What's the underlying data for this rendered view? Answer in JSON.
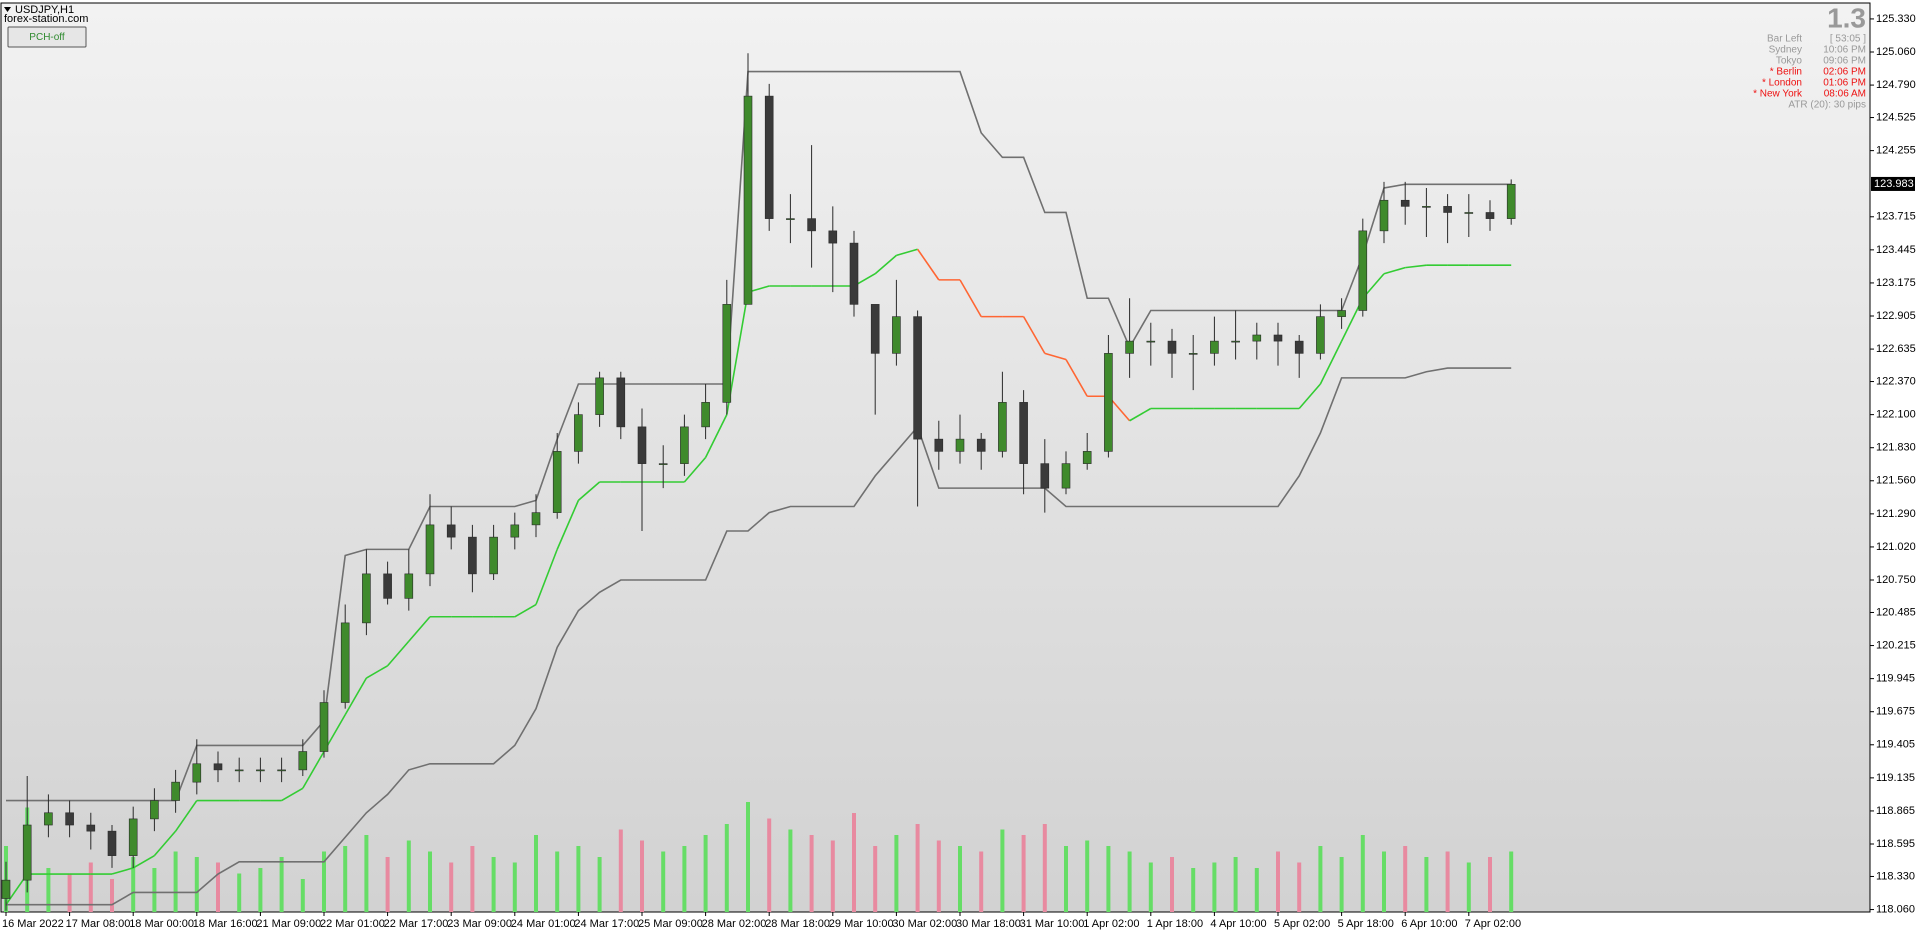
{
  "chart_data": {
    "type": "candlestick",
    "title": "USDJPY,H1",
    "subtitle": "forex-station.com",
    "button": "PCH-off",
    "categories": [
      "16 Mar 2022",
      null,
      null,
      "17 Mar 08:00",
      null,
      null,
      "18 Mar 00:00",
      null,
      null,
      "18 Mar 16:00",
      null,
      null,
      "21 Mar 09:00",
      null,
      null,
      "22 Mar 01:00",
      null,
      null,
      "22 Mar 17:00",
      null,
      null,
      "23 Mar 09:00",
      null,
      null,
      "24 Mar 01:00",
      null,
      null,
      "24 Mar 17:00",
      null,
      null,
      "25 Mar 09:00",
      null,
      null,
      "28 Mar 02:00",
      null,
      null,
      "28 Mar 18:00",
      null,
      null,
      "29 Mar 10:00",
      null,
      null,
      "30 Mar 02:00",
      null,
      null,
      "30 Mar 18:00",
      null,
      null,
      "31 Mar 10:00",
      null,
      null,
      "1 Apr 02:00",
      null,
      null,
      "1 Apr 18:00",
      null,
      null,
      "4 Apr 10:00",
      null,
      null,
      "5 Apr 02:00",
      null,
      null,
      "5 Apr 18:00",
      null,
      null,
      "6 Apr 10:00",
      null,
      null,
      "7 Apr 02:00",
      null,
      null
    ],
    "open": [
      118.15,
      118.3,
      118.75,
      118.85,
      118.75,
      118.7,
      118.5,
      118.8,
      118.95,
      119.1,
      119.25,
      119.2,
      119.2,
      119.2,
      119.2,
      119.35,
      119.75,
      120.4,
      120.8,
      120.6,
      120.8,
      121.2,
      121.1,
      120.8,
      121.1,
      121.2,
      121.3,
      121.8,
      122.1,
      122.4,
      122.0,
      121.7,
      121.7,
      122.0,
      122.2,
      123.0,
      124.7,
      123.7,
      123.7,
      123.6,
      123.5,
      123.0,
      122.6,
      122.9,
      121.9,
      121.8,
      121.9,
      121.8,
      122.2,
      121.7,
      121.5,
      121.7,
      121.8,
      122.6,
      122.7,
      122.7,
      122.6,
      122.6,
      122.7,
      122.7,
      122.75,
      122.7,
      122.6,
      122.9,
      122.95,
      123.6,
      123.85,
      123.8,
      123.8,
      123.75,
      123.75,
      123.7
    ],
    "high": [
      118.45,
      119.15,
      119.0,
      118.95,
      118.85,
      118.75,
      118.9,
      119.05,
      119.2,
      119.45,
      119.35,
      119.3,
      119.3,
      119.3,
      119.45,
      119.85,
      120.55,
      121.0,
      120.9,
      121.0,
      121.45,
      121.35,
      121.2,
      121.2,
      121.3,
      121.45,
      121.95,
      122.2,
      122.45,
      122.45,
      122.15,
      121.85,
      122.1,
      122.35,
      123.2,
      125.05,
      124.8,
      123.9,
      124.3,
      123.8,
      123.6,
      122.95,
      123.2,
      122.95,
      122.05,
      122.1,
      121.95,
      122.45,
      122.3,
      121.9,
      121.8,
      121.95,
      122.75,
      123.05,
      122.85,
      122.8,
      122.75,
      122.9,
      122.95,
      122.85,
      122.85,
      122.75,
      123.0,
      123.05,
      123.7,
      124.0,
      124.0,
      123.95,
      123.9,
      123.9,
      123.85,
      124.02
    ],
    "low": [
      118.05,
      118.2,
      118.65,
      118.65,
      118.55,
      118.4,
      118.4,
      118.7,
      118.85,
      119.0,
      119.1,
      119.1,
      119.1,
      119.1,
      119.15,
      119.3,
      119.7,
      120.3,
      120.55,
      120.5,
      120.7,
      121.0,
      120.65,
      120.75,
      121.0,
      121.1,
      121.25,
      121.7,
      122.0,
      121.9,
      121.15,
      121.5,
      121.6,
      121.9,
      122.1,
      123.0,
      123.6,
      123.5,
      123.3,
      123.1,
      122.9,
      122.1,
      122.5,
      121.35,
      121.65,
      121.7,
      121.65,
      121.75,
      121.45,
      121.3,
      121.45,
      121.65,
      121.75,
      122.4,
      122.5,
      122.4,
      122.3,
      122.5,
      122.55,
      122.55,
      122.5,
      122.4,
      122.55,
      122.8,
      122.9,
      123.5,
      123.65,
      123.55,
      123.5,
      123.55,
      123.6,
      123.65
    ],
    "close": [
      118.3,
      118.75,
      118.85,
      118.75,
      118.7,
      118.5,
      118.8,
      118.95,
      119.1,
      119.25,
      119.2,
      119.2,
      119.2,
      119.2,
      119.35,
      119.75,
      120.4,
      120.8,
      120.6,
      120.8,
      121.2,
      121.1,
      120.8,
      121.1,
      121.2,
      121.3,
      121.8,
      122.1,
      122.4,
      122.0,
      121.7,
      121.7,
      122.0,
      122.2,
      123.0,
      124.7,
      123.7,
      123.7,
      123.6,
      123.5,
      123.0,
      122.6,
      122.9,
      121.9,
      121.8,
      121.9,
      121.8,
      122.2,
      121.7,
      121.5,
      121.7,
      121.8,
      122.6,
      122.7,
      122.7,
      122.6,
      122.6,
      122.7,
      122.7,
      122.75,
      122.7,
      122.6,
      122.9,
      122.95,
      123.6,
      123.85,
      123.8,
      123.8,
      123.75,
      123.75,
      123.7,
      123.98
    ],
    "up_color": "#3f8a2c",
    "down_color": "#3a3a3a",
    "volume": [
      60,
      95,
      40,
      35,
      45,
      30,
      50,
      40,
      55,
      50,
      45,
      35,
      40,
      50,
      30,
      55,
      60,
      70,
      50,
      65,
      55,
      45,
      60,
      50,
      45,
      70,
      55,
      60,
      50,
      75,
      65,
      55,
      60,
      70,
      80,
      100,
      85,
      75,
      70,
      65,
      90,
      60,
      70,
      80,
      65,
      60,
      55,
      75,
      70,
      80,
      60,
      65,
      60,
      55,
      45,
      50,
      40,
      45,
      50,
      40,
      55,
      45,
      60,
      50,
      70,
      55,
      60,
      50,
      55,
      45,
      50,
      55
    ],
    "volume_up_color": "#66dd66",
    "volume_down_color": "#e88aa0",
    "series": [
      {
        "color": "#707070",
        "values": [
          118.95,
          118.95,
          118.95,
          118.95,
          118.95,
          118.95,
          118.95,
          118.95,
          118.95,
          119.4,
          119.4,
          119.4,
          119.4,
          119.4,
          119.4,
          119.6,
          120.95,
          121.0,
          121.0,
          121.0,
          121.35,
          121.35,
          121.35,
          121.35,
          121.35,
          121.4,
          121.9,
          122.35,
          122.35,
          122.35,
          122.35,
          122.35,
          122.35,
          122.35,
          122.35,
          124.9,
          124.9,
          124.9,
          124.9,
          124.9,
          124.9,
          124.9,
          124.9,
          124.9,
          124.9,
          124.9,
          124.4,
          124.2,
          124.2,
          123.75,
          123.75,
          123.05,
          123.05,
          122.65,
          122.95,
          122.95,
          122.95,
          122.95,
          122.95,
          122.95,
          122.95,
          122.95,
          122.95,
          122.95,
          123.4,
          123.95,
          123.98,
          123.98,
          123.98,
          123.98,
          123.98,
          123.98
        ]
      },
      {
        "color": "#33cc33",
        "down_color": "#ff6633",
        "values": [
          118.1,
          118.35,
          118.35,
          118.35,
          118.35,
          118.35,
          118.4,
          118.5,
          118.7,
          118.95,
          118.95,
          118.95,
          118.95,
          118.95,
          119.05,
          119.35,
          119.65,
          119.95,
          120.05,
          120.25,
          120.45,
          120.45,
          120.45,
          120.45,
          120.45,
          120.55,
          121.0,
          121.4,
          121.55,
          121.55,
          121.55,
          121.55,
          121.55,
          121.75,
          122.1,
          123.1,
          123.15,
          123.15,
          123.15,
          123.15,
          123.15,
          123.25,
          123.4,
          123.45,
          123.2,
          123.2,
          122.9,
          122.9,
          122.9,
          122.6,
          122.55,
          122.25,
          122.25,
          122.05,
          122.15,
          122.15,
          122.15,
          122.15,
          122.15,
          122.15,
          122.15,
          122.15,
          122.35,
          122.7,
          123.05,
          123.25,
          123.3,
          123.32,
          123.32,
          123.32,
          123.32,
          123.32
        ]
      },
      {
        "color": "#707070",
        "values": [
          118.1,
          118.1,
          118.1,
          118.1,
          118.1,
          118.1,
          118.2,
          118.2,
          118.2,
          118.2,
          118.35,
          118.45,
          118.45,
          118.45,
          118.45,
          118.45,
          118.65,
          118.85,
          119.0,
          119.2,
          119.25,
          119.25,
          119.25,
          119.25,
          119.4,
          119.7,
          120.2,
          120.5,
          120.65,
          120.75,
          120.75,
          120.75,
          120.75,
          120.75,
          121.15,
          121.15,
          121.3,
          121.35,
          121.35,
          121.35,
          121.35,
          121.6,
          121.8,
          122.0,
          121.5,
          121.5,
          121.5,
          121.5,
          121.5,
          121.5,
          121.35,
          121.35,
          121.35,
          121.35,
          121.35,
          121.35,
          121.35,
          121.35,
          121.35,
          121.35,
          121.35,
          121.6,
          121.95,
          122.4,
          122.4,
          122.4,
          122.4,
          122.45,
          122.48,
          122.48,
          122.48,
          122.48
        ]
      }
    ],
    "ylim": [
      118.04,
      125.46
    ],
    "yticks": [
      {
        "value": 125.33,
        "label": "125.330"
      },
      {
        "value": 125.06,
        "label": "125.060"
      },
      {
        "value": 124.79,
        "label": "124.790"
      },
      {
        "value": 124.525,
        "label": "124.525"
      },
      {
        "value": 124.255,
        "label": "124.255"
      },
      {
        "value": 123.715,
        "label": "123.715"
      },
      {
        "value": 123.445,
        "label": "123.445"
      },
      {
        "value": 123.175,
        "label": "123.175"
      },
      {
        "value": 122.905,
        "label": "122.905"
      },
      {
        "value": 122.635,
        "label": "122.635"
      },
      {
        "value": 122.37,
        "label": "122.370"
      },
      {
        "value": 122.1,
        "label": "122.100"
      },
      {
        "value": 121.83,
        "label": "121.830"
      },
      {
        "value": 121.56,
        "label": "121.560"
      },
      {
        "value": 121.29,
        "label": "121.290"
      },
      {
        "value": 121.02,
        "label": "121.020"
      },
      {
        "value": 120.75,
        "label": "120.750"
      },
      {
        "value": 120.485,
        "label": "120.485"
      },
      {
        "value": 120.215,
        "label": "120.215"
      },
      {
        "value": 119.945,
        "label": "119.945"
      },
      {
        "value": 119.675,
        "label": "119.675"
      },
      {
        "value": 119.405,
        "label": "119.405"
      },
      {
        "value": 119.135,
        "label": "119.135"
      },
      {
        "value": 118.865,
        "label": "118.865"
      },
      {
        "value": 118.595,
        "label": "118.595"
      },
      {
        "value": 118.33,
        "label": "118.330"
      },
      {
        "value": 118.06,
        "label": "118.060"
      }
    ],
    "price_label": {
      "value": 123.983,
      "label": "123.983"
    },
    "grid": false,
    "info_panel": {
      "big": "1.3",
      "rows": [
        {
          "label": "Bar Left",
          "value": "[ 53:05 ]",
          "highlight": false
        },
        {
          "label": "Sydney",
          "value": "10:06 PM",
          "highlight": false
        },
        {
          "label": "Tokyo",
          "value": "09:06 PM",
          "highlight": false
        },
        {
          "label": "* Berlin",
          "value": "02:06 PM",
          "highlight": true
        },
        {
          "label": "* London",
          "value": "01:06 PM",
          "highlight": true
        },
        {
          "label": "* New York",
          "value": "08:06 AM",
          "highlight": true
        }
      ],
      "atr": "ATR (20): 30 pips",
      "highlight_color": "#ee1111"
    }
  }
}
